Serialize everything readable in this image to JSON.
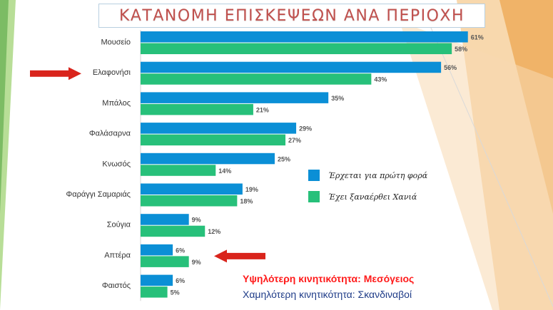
{
  "title": "ΚΑΤΑΝΟΜΗ ΕΠΙΣΚΕΨΕΩΝ ΑΝΑ ΠΕΡΙΟΧΗ",
  "colors": {
    "first_time": "#0b8fd6",
    "returning": "#27c07a",
    "title": "#c0504d",
    "highlight_arrow": "#d9241c",
    "note_high": "#ff1a1a",
    "note_low": "#1f3c88"
  },
  "chart_data": {
    "type": "bar",
    "orientation": "horizontal",
    "categories": [
      "Μουσείο",
      "Ελαφονήσι",
      "Μπάλος",
      "Φαλάσαρνα",
      "Κνωσός",
      "Φαράγγι Σαμαριάς",
      "Σούγια",
      "Απτέρα",
      "Φαιστός"
    ],
    "series": [
      {
        "name": "Έρχεται για πρώτη φορά",
        "values": [
          61,
          56,
          35,
          29,
          25,
          19,
          9,
          6,
          6
        ]
      },
      {
        "name": "Έχει ξαναέρθει Χανιά",
        "values": [
          58,
          43,
          21,
          27,
          14,
          18,
          12,
          9,
          5
        ]
      }
    ],
    "value_suffix": "%",
    "xlim": [
      0,
      65
    ],
    "grid": false,
    "legend_position": "right",
    "highlighted_categories": [
      "Ελαφονήσι",
      "Απτέρα"
    ]
  },
  "notes": {
    "high": "Υψηλότερη κινητικότητα: Μεσόγειος",
    "low": "Χαμηλότερη κινητικότητα: Σκανδιναβοί"
  }
}
